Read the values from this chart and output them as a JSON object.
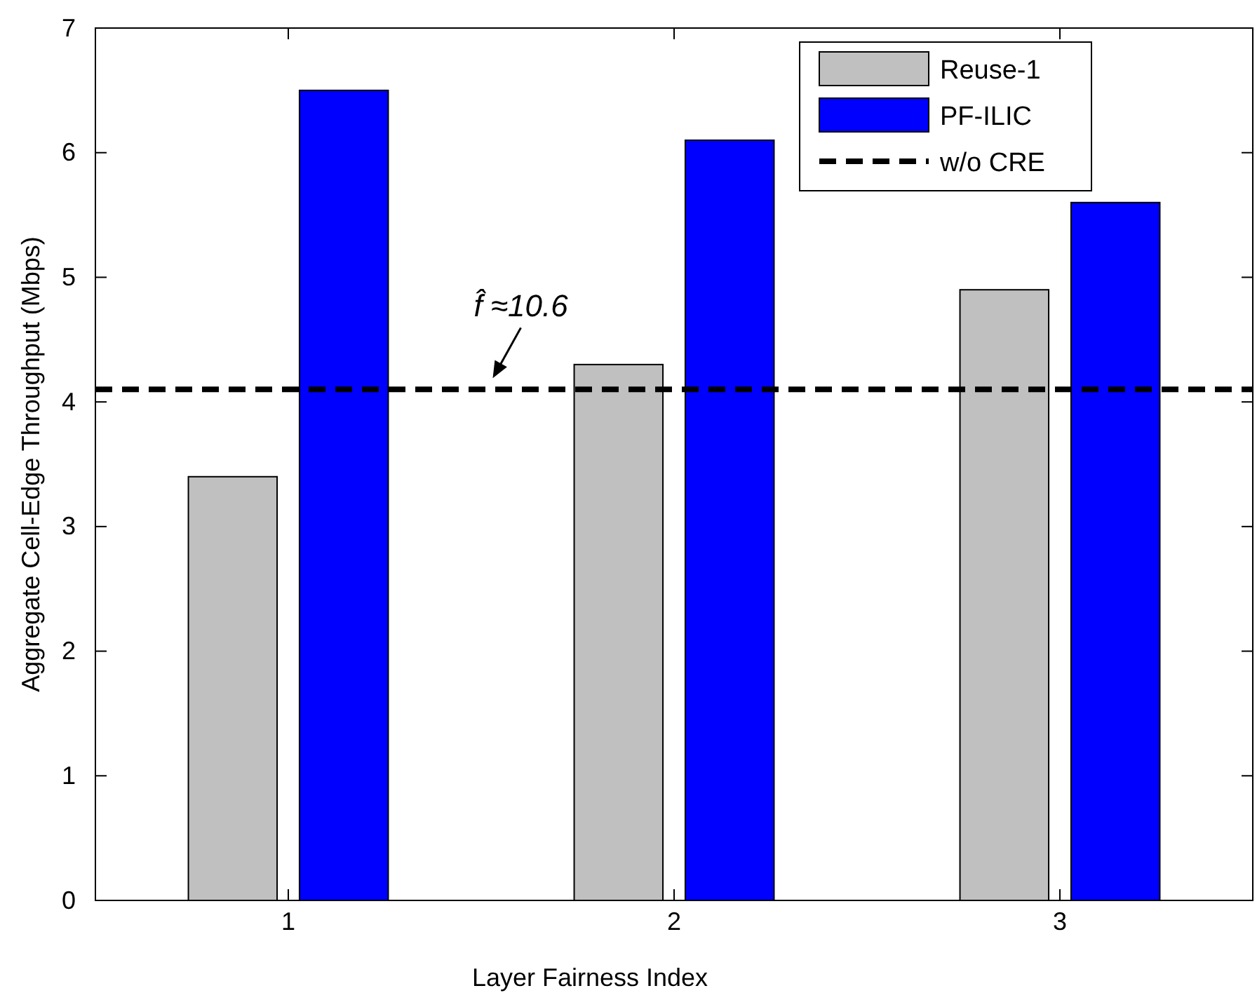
{
  "chart_data": {
    "type": "bar",
    "xlabel": "Layer Fairness Index",
    "ylabel": "Aggregate Cell-Edge Throughput (Mbps)",
    "categories": [
      "1",
      "2",
      "3"
    ],
    "series": [
      {
        "name": "Reuse-1",
        "color": "#c0c0c0",
        "values": [
          3.4,
          4.3,
          4.9
        ]
      },
      {
        "name": "PF-ILIC",
        "color": "#0000ff",
        "values": [
          6.5,
          6.1,
          5.6
        ]
      }
    ],
    "ylim": [
      0,
      7
    ],
    "yticks": [
      0,
      1,
      2,
      3,
      4,
      5,
      6,
      7
    ],
    "ref_lines": [
      {
        "axis": "y",
        "value": 4.1,
        "label": "w/o CRE",
        "color": "#000000",
        "line_style": "dashed"
      }
    ],
    "annotations": [
      {
        "text": "f̂ ≈10.6",
        "y": 4.1
      }
    ],
    "legend": "top right",
    "grid": false
  }
}
